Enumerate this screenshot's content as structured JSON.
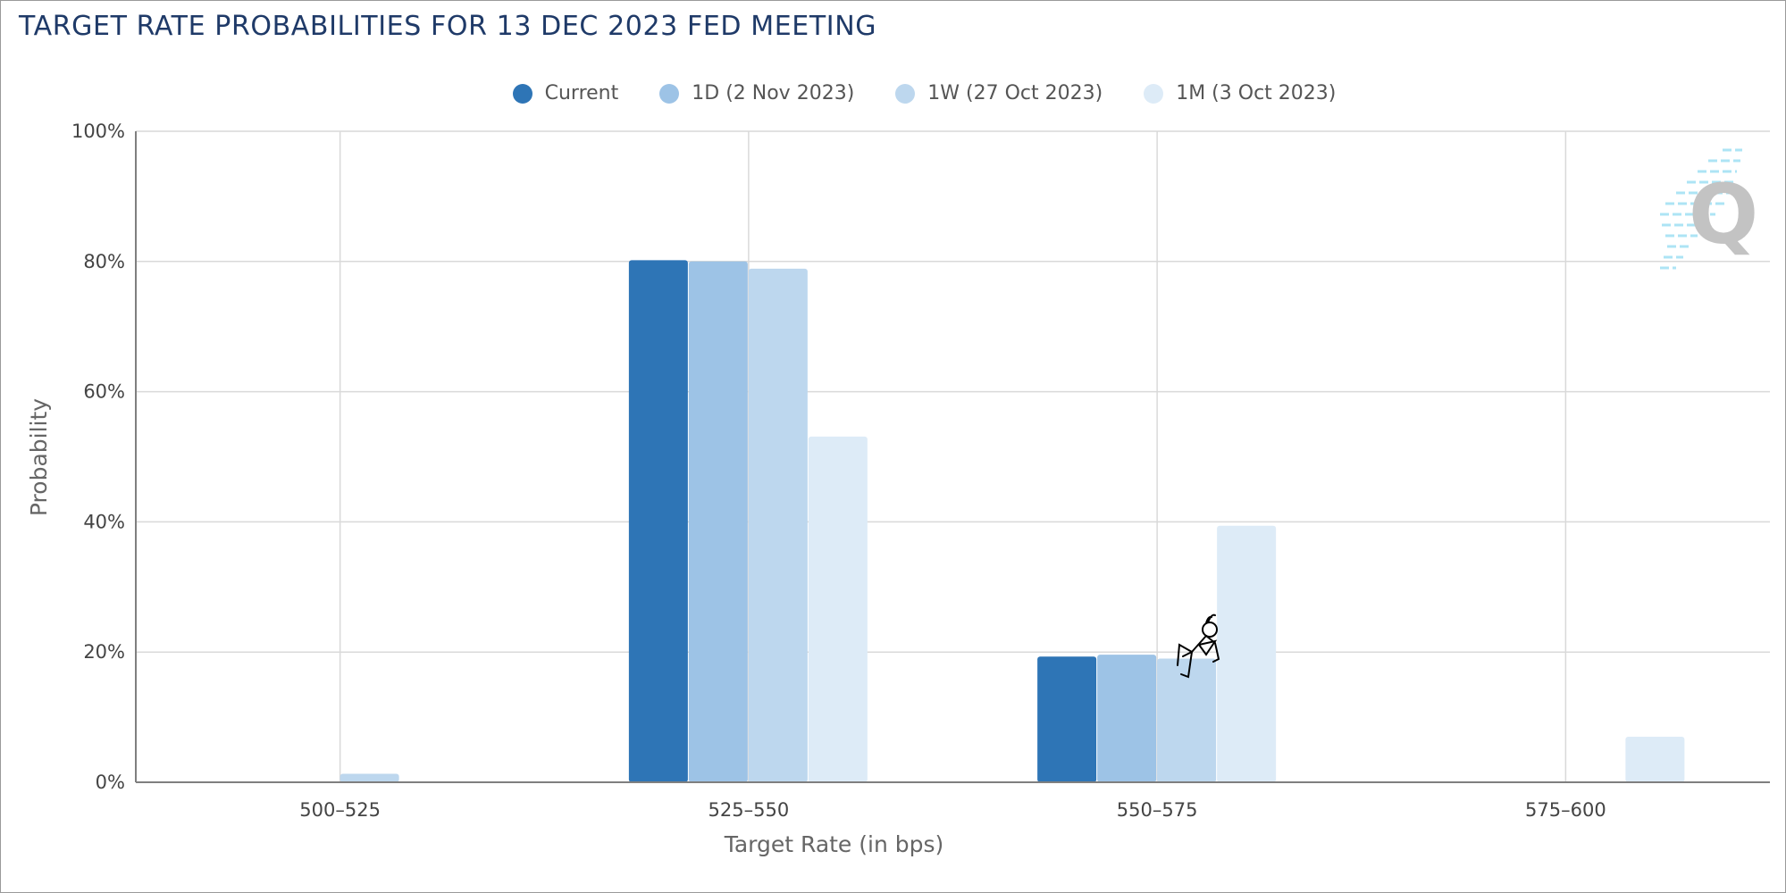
{
  "title": "TARGET RATE PROBABILITIES FOR 13 DEC 2023 FED MEETING",
  "chart_data": {
    "type": "bar",
    "categories": [
      "500-525",
      "525-550",
      "550-575",
      "575-600"
    ],
    "series": [
      {
        "name": "Current",
        "color": "#2e75b6",
        "values": [
          0,
          80.2,
          19.3,
          0
        ]
      },
      {
        "name": "1D (2 Nov 2023)",
        "color": "#9dc3e6",
        "values": [
          0,
          80.0,
          19.6,
          0
        ]
      },
      {
        "name": "1W (27 Oct 2023)",
        "color": "#bdd7ee",
        "values": [
          1.3,
          78.9,
          19.0,
          0
        ]
      },
      {
        "name": "1M (3 Oct 2023)",
        "color": "#ddebf7",
        "values": [
          0,
          53.1,
          39.4,
          7.0
        ]
      }
    ],
    "xlabel": "Target Rate (in bps)",
    "ylabel": "Probability",
    "ylim": [
      0,
      100
    ],
    "yticks": [
      "0%",
      "20%",
      "40%",
      "60%",
      "80%",
      "100%"
    ],
    "ytick_values": [
      0,
      20,
      40,
      60,
      80,
      100
    ],
    "grid": true,
    "legend_position": "top-center"
  },
  "colors": {
    "title": "#1f3a68",
    "grid": "#d9d9d9",
    "axis": "#7f7f7f"
  },
  "watermark_icon": "quikstrike-q-logo",
  "sticker_icon": "stick-figure-reading"
}
